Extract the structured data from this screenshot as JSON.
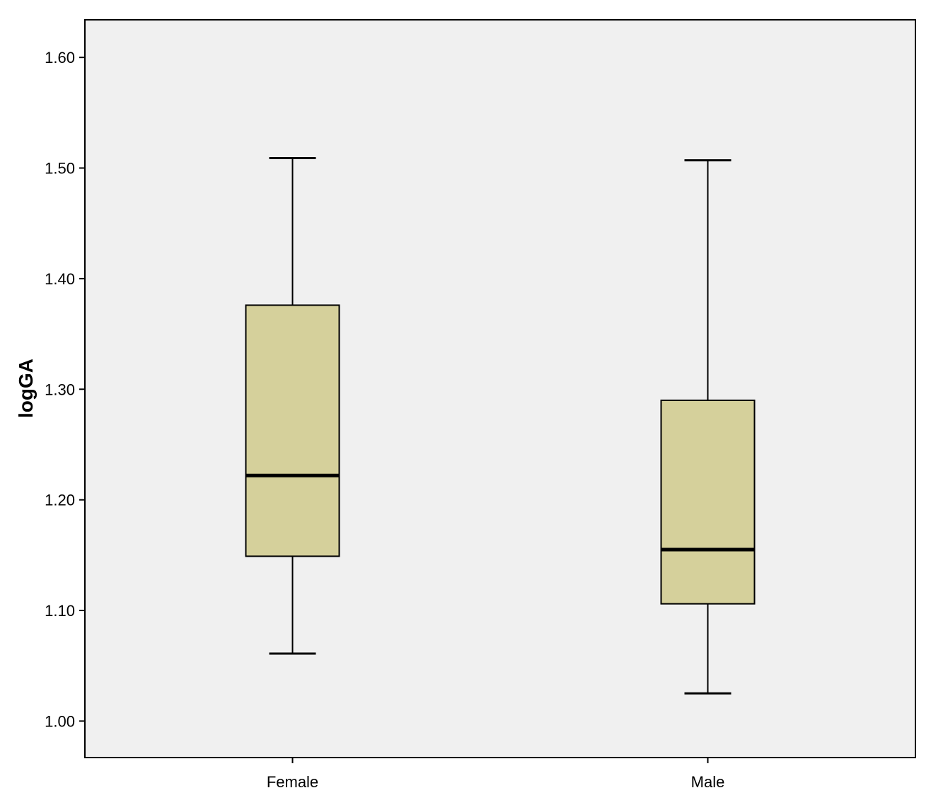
{
  "chart_data": {
    "type": "boxplot",
    "title": "",
    "xlabel": "",
    "ylabel": "logGA",
    "ylim": [
      0.967,
      1.634
    ],
    "yticks": [
      1.0,
      1.1,
      1.2,
      1.3,
      1.4,
      1.5,
      1.6
    ],
    "ytick_labels": [
      "1.00",
      "1.10",
      "1.20",
      "1.30",
      "1.40",
      "1.50",
      "1.60"
    ],
    "grid": false,
    "legend": "none",
    "categories": [
      "Female",
      "Male"
    ],
    "boxes": [
      {
        "category": "Female",
        "min": 1.061,
        "q1": 1.149,
        "median": 1.222,
        "q3": 1.376,
        "max": 1.509
      },
      {
        "category": "Male",
        "min": 1.025,
        "q1": 1.106,
        "median": 1.155,
        "q3": 1.29,
        "max": 1.507
      }
    ],
    "colors": {
      "plot_background": "#f0f0f0",
      "box_fill": "#d5d09b",
      "line": "#000000"
    }
  }
}
